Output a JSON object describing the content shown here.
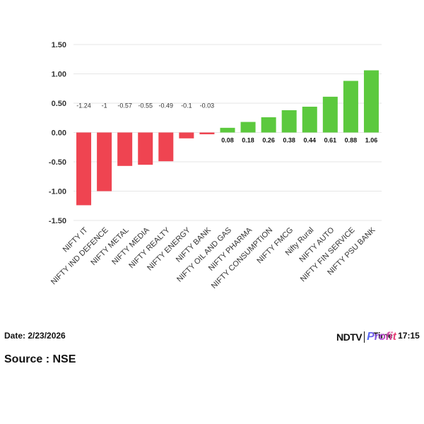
{
  "chart_data": {
    "type": "bar",
    "title": "",
    "xlabel": "",
    "ylabel": "",
    "ylim": [
      -1.5,
      1.5
    ],
    "yticks": [
      "1.50",
      "1.00",
      "0.50",
      "0.00",
      "-0.50",
      "-1.00",
      "-1.50"
    ],
    "grid": "horizontal",
    "categories": [
      "NIFTY IT",
      "NIFTY IND DEFENCE",
      "NIFTY METAL",
      "NIFTY MEDIA",
      "NIFTY REALTY",
      "NIFTY ENERGY",
      "NIFTY BANK",
      "NIFTY OIL AND GAS",
      "NIFTY PHARMA",
      "NIFTY CONSUMPTION",
      "NIFTY FMCG",
      "Nifty Rural",
      "NIFTY AUTO",
      "NIFTY FIN SERVICE",
      "NIFTY PSU BANK"
    ],
    "values": [
      -1.24,
      -1,
      -0.57,
      -0.55,
      -0.49,
      -0.1,
      -0.03,
      0.08,
      0.18,
      0.26,
      0.38,
      0.44,
      0.61,
      0.88,
      1.06
    ],
    "data_labels": [
      "-1.24",
      "-1",
      "-0.57",
      "-0.55",
      "-0.49",
      "-0.1",
      "-0.03",
      "0.08",
      "0.18",
      "0.26",
      "0.38",
      "0.44",
      "0.61",
      "0.88",
      "1.06"
    ],
    "colors": {
      "negative": "#ef4451",
      "positive": "#5cc93e",
      "grid": "#e6e6e6"
    }
  },
  "footer": {
    "date": "Date: 2/23/2026",
    "time": "Time: 17:15",
    "source": "Source : NSE",
    "brand_primary": "NDTV",
    "brand_secondary": "Profit"
  }
}
